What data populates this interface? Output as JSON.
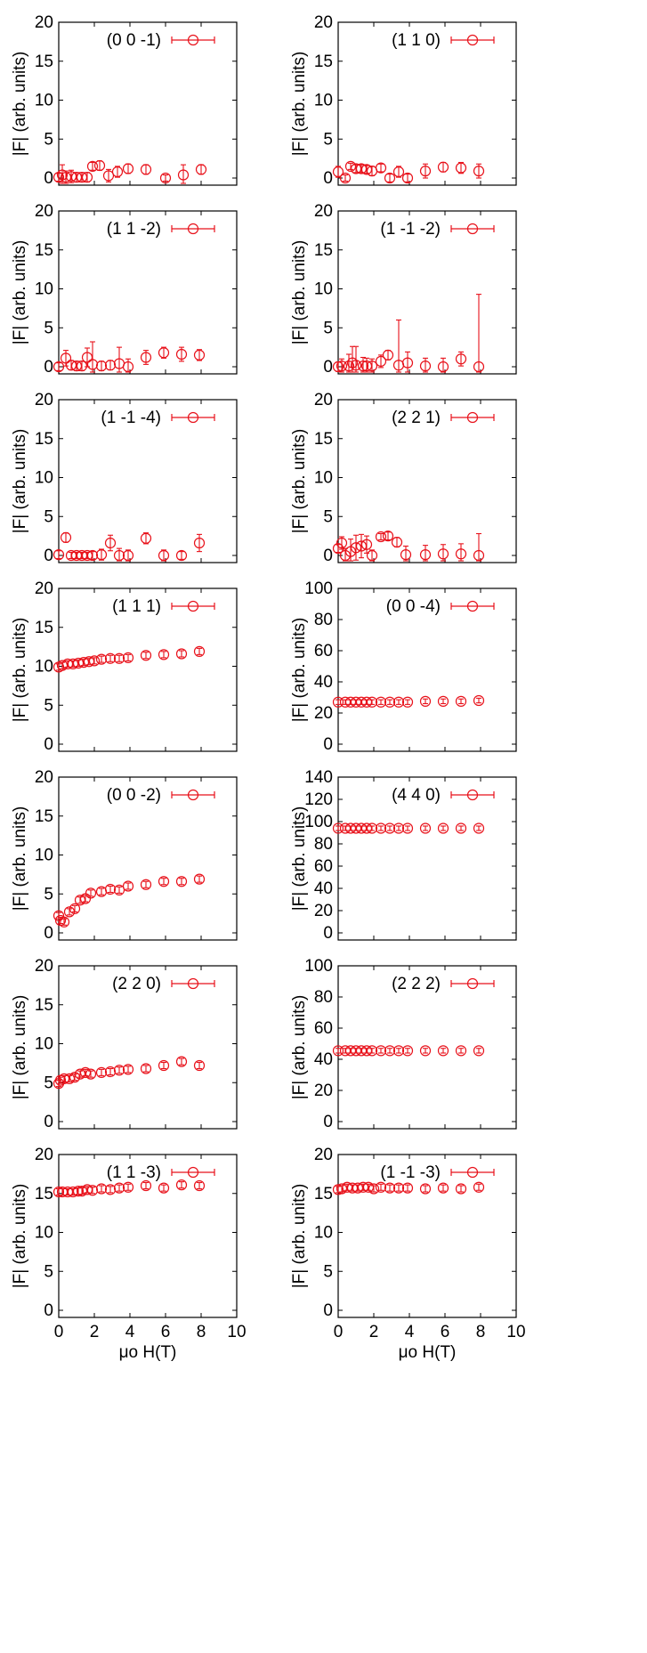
{
  "figure": {
    "xlabel": "μo H(T)",
    "ylabel": "|F| (arb. units)",
    "x_ticks": [
      0,
      2,
      4,
      6,
      8,
      10
    ],
    "series_color": "#e8111a",
    "axis_color": "#000000"
  },
  "chart_data": [
    {
      "type": "scatter",
      "title": "(0 0 -1)",
      "legend": "(0 0 -1)",
      "legend_loc": "top-right",
      "xlim": [
        0,
        10
      ],
      "ylim": [
        0,
        20
      ],
      "yticks": [
        0,
        5,
        10,
        15,
        20
      ],
      "ylabel": "|F| (arb. units)",
      "x": [
        0,
        0.2,
        0.4,
        0.7,
        1.0,
        1.3,
        1.6,
        1.9,
        2.3,
        2.8,
        3.3,
        3.9,
        4.9,
        6.0,
        7.0,
        8.0
      ],
      "y": [
        0.1,
        0.4,
        0.1,
        0.2,
        0.1,
        0.1,
        0.1,
        1.5,
        1.6,
        0.3,
        0.8,
        1.2,
        1.1,
        0.0,
        0.4,
        1.1
      ],
      "err": [
        0.5,
        1.3,
        0.8,
        0.8,
        0.6,
        0.6,
        0.6,
        0.5,
        0.6,
        0.8,
        0.7,
        0.6,
        0.6,
        0.4,
        1.3,
        0.6
      ]
    },
    {
      "type": "scatter",
      "title": "(1 1 0)",
      "legend": "(1 1 0)",
      "legend_loc": "top-right",
      "xlim": [
        0,
        10
      ],
      "ylim": [
        0,
        20
      ],
      "yticks": [
        0,
        5,
        10,
        15,
        20
      ],
      "ylabel": "|F| (arb. units)",
      "x": [
        0,
        0.4,
        0.7,
        1.0,
        1.3,
        1.6,
        1.9,
        2.4,
        2.9,
        3.4,
        3.9,
        4.9,
        5.9,
        6.9,
        7.9
      ],
      "y": [
        0.8,
        0.0,
        1.5,
        1.2,
        1.2,
        1.1,
        0.9,
        1.3,
        0.0,
        0.8,
        0.0,
        0.9,
        1.4,
        1.3,
        0.9
      ],
      "err": [
        0.7,
        0.4,
        0.4,
        0.5,
        0.5,
        0.5,
        0.6,
        0.5,
        0.5,
        0.7,
        0.5,
        0.9,
        0.6,
        0.7,
        0.9
      ]
    },
    {
      "type": "scatter",
      "title": "(1 1 -2)",
      "legend": "(1 1 -2)",
      "legend_loc": "top-right",
      "xlim": [
        0,
        10
      ],
      "ylim": [
        0,
        20
      ],
      "yticks": [
        0,
        5,
        10,
        15,
        20
      ],
      "ylabel": "|F| (arb. units)",
      "x": [
        0,
        0.4,
        0.7,
        1.0,
        1.3,
        1.6,
        1.9,
        2.4,
        2.9,
        3.4,
        3.9,
        4.9,
        5.9,
        6.9,
        7.9
      ],
      "y": [
        0.0,
        1.1,
        0.2,
        0.1,
        0.1,
        1.2,
        0.3,
        0.1,
        0.2,
        0.4,
        0.0,
        1.2,
        1.8,
        1.6,
        1.5
      ],
      "err": [
        0.5,
        1.0,
        0.6,
        0.6,
        0.6,
        1.2,
        2.9,
        0.6,
        0.6,
        2.1,
        1.0,
        0.9,
        0.7,
        0.9,
        0.7
      ]
    },
    {
      "type": "scatter",
      "title": "(1 -1 -2)",
      "legend": "(1 -1 -2)",
      "legend_loc": "top-right",
      "xlim": [
        0,
        10
      ],
      "ylim": [
        0,
        20
      ],
      "yticks": [
        0,
        5,
        10,
        15,
        20
      ],
      "ylabel": "|F| (arb. units)",
      "x": [
        0,
        0.2,
        0.6,
        0.8,
        1.0,
        1.4,
        1.6,
        1.9,
        2.4,
        2.8,
        3.4,
        3.9,
        4.9,
        5.9,
        6.9,
        7.9
      ],
      "y": [
        0.0,
        0.1,
        0.1,
        0.5,
        0.2,
        0.1,
        0.1,
        0.1,
        0.7,
        1.5,
        0.2,
        0.5,
        0.1,
        0.0,
        1.0,
        0.0
      ],
      "err": [
        0.6,
        0.9,
        1.5,
        2.1,
        2.4,
        1.1,
        1.0,
        0.9,
        0.8,
        0.6,
        5.8,
        1.4,
        1.0,
        1.1,
        0.9,
        9.3
      ]
    },
    {
      "type": "scatter",
      "title": "(1 -1 -4)",
      "legend": "(1 -1 -4)",
      "legend_loc": "top-right",
      "xlim": [
        0,
        10
      ],
      "ylim": [
        0,
        20
      ],
      "yticks": [
        0,
        5,
        10,
        15,
        20
      ],
      "ylabel": "|F| (arb. units)",
      "x": [
        0,
        0.4,
        0.7,
        1.0,
        1.3,
        1.6,
        1.9,
        2.4,
        2.9,
        3.4,
        3.9,
        4.9,
        5.9,
        6.9,
        7.9
      ],
      "y": [
        0.1,
        2.3,
        0.0,
        0.0,
        0.0,
        0.0,
        0.0,
        0.1,
        1.6,
        0.0,
        0.0,
        2.2,
        0.0,
        0.0,
        1.6
      ],
      "err": [
        0.5,
        0.6,
        0.4,
        0.4,
        0.4,
        0.4,
        0.5,
        0.7,
        1.0,
        0.9,
        0.7,
        0.7,
        0.7,
        0.5,
        1.1
      ]
    },
    {
      "type": "scatter",
      "title": "(2 2 1)",
      "legend": "(2 2 1)",
      "legend_loc": "top-right",
      "xlim": [
        0,
        10
      ],
      "ylim": [
        0,
        20
      ],
      "yticks": [
        0,
        5,
        10,
        15,
        20
      ],
      "ylabel": "|F| (arb. units)",
      "x": [
        0,
        0.2,
        0.4,
        0.7,
        1.0,
        1.3,
        1.6,
        1.9,
        2.4,
        2.8,
        3.3,
        3.8,
        4.9,
        5.9,
        6.9,
        7.9
      ],
      "y": [
        0.9,
        1.6,
        0.0,
        0.5,
        1.0,
        1.2,
        1.4,
        0.0,
        2.4,
        2.5,
        1.7,
        0.1,
        0.1,
        0.2,
        0.2,
        0.0
      ],
      "err": [
        0.5,
        0.8,
        0.9,
        1.6,
        1.6,
        1.5,
        1.1,
        0.7,
        0.4,
        0.5,
        0.6,
        1.1,
        1.2,
        1.2,
        1.3,
        2.8
      ]
    },
    {
      "type": "scatter",
      "title": "(1 1 1)",
      "legend": "(1 1 1)",
      "legend_loc": "top-right",
      "xlim": [
        0,
        10
      ],
      "ylim": [
        0,
        20
      ],
      "yticks": [
        0,
        5,
        10,
        15,
        20
      ],
      "ylabel": "|F| (arb. units)",
      "x": [
        0,
        0.2,
        0.5,
        0.8,
        1.1,
        1.4,
        1.7,
        2.0,
        2.4,
        2.9,
        3.4,
        3.9,
        4.9,
        5.9,
        6.9,
        7.9
      ],
      "y": [
        9.9,
        10.1,
        10.3,
        10.3,
        10.4,
        10.5,
        10.6,
        10.7,
        10.9,
        11.0,
        11.0,
        11.1,
        11.4,
        11.5,
        11.6,
        11.9
      ],
      "err": [
        0.4,
        0.4,
        0.4,
        0.4,
        0.4,
        0.4,
        0.4,
        0.4,
        0.4,
        0.4,
        0.4,
        0.4,
        0.4,
        0.4,
        0.4,
        0.4
      ]
    },
    {
      "type": "scatter",
      "title": "(0 0 -4)",
      "legend": "(0 0 -4)",
      "legend_loc": "top-right",
      "xlim": [
        0,
        10
      ],
      "ylim": [
        0,
        100
      ],
      "yticks": [
        0,
        20,
        40,
        60,
        80,
        100
      ],
      "ylabel": "|F| (arb. units)",
      "x": [
        0,
        0.4,
        0.7,
        1.0,
        1.3,
        1.6,
        1.9,
        2.4,
        2.9,
        3.4,
        3.9,
        4.9,
        5.9,
        6.9,
        7.9
      ],
      "y": [
        27,
        27,
        27,
        27,
        27,
        27,
        27,
        27,
        27,
        27,
        27,
        27.5,
        27.5,
        27.5,
        28
      ],
      "err": [
        1.5,
        1.5,
        1.5,
        1.5,
        1.5,
        1.5,
        1.5,
        1.5,
        1.5,
        1.5,
        1.5,
        1.5,
        1.5,
        1.5,
        1.5
      ]
    },
    {
      "type": "scatter",
      "title": "(0 0 -2)",
      "legend": "(0 0 -2)",
      "legend_loc": "top-right",
      "xlim": [
        0,
        10
      ],
      "ylim": [
        0,
        20
      ],
      "yticks": [
        0,
        5,
        10,
        15,
        20
      ],
      "ylabel": "|F| (arb. units)",
      "x": [
        0,
        0.1,
        0.3,
        0.6,
        0.9,
        1.2,
        1.5,
        1.8,
        2.4,
        2.9,
        3.4,
        3.9,
        4.9,
        5.9,
        6.9,
        7.9
      ],
      "y": [
        2.2,
        1.6,
        1.4,
        2.7,
        3.1,
        4.2,
        4.4,
        5.1,
        5.3,
        5.6,
        5.5,
        6.0,
        6.2,
        6.6,
        6.6,
        6.9
      ],
      "err": [
        0.4,
        0.4,
        0.4,
        0.4,
        0.4,
        0.4,
        0.4,
        0.4,
        0.4,
        0.4,
        0.4,
        0.4,
        0.4,
        0.4,
        0.4,
        0.4
      ]
    },
    {
      "type": "scatter",
      "title": "(4 4 0)",
      "legend": "(4 4 0)",
      "legend_loc": "top-right",
      "xlim": [
        0,
        10
      ],
      "ylim": [
        0,
        140
      ],
      "yticks": [
        0,
        20,
        40,
        60,
        80,
        100,
        120,
        140
      ],
      "ylabel": "|F| (arb. units)",
      "x": [
        0,
        0.4,
        0.7,
        1.0,
        1.3,
        1.6,
        1.9,
        2.4,
        2.9,
        3.4,
        3.9,
        4.9,
        5.9,
        6.9,
        7.9
      ],
      "y": [
        94,
        94,
        94,
        94,
        94,
        94,
        94,
        94,
        94,
        94,
        94,
        94,
        94,
        94,
        94
      ],
      "err": [
        2,
        2,
        2,
        2,
        2,
        2,
        2,
        2,
        2,
        2,
        2,
        2,
        2,
        2,
        2
      ]
    },
    {
      "type": "scatter",
      "title": "(2 2 0)",
      "legend": "(2 2 0)",
      "legend_loc": "top-right",
      "xlim": [
        0,
        10
      ],
      "ylim": [
        0,
        20
      ],
      "yticks": [
        0,
        5,
        10,
        15,
        20
      ],
      "ylabel": "|F| (arb. units)",
      "x": [
        0,
        0.1,
        0.3,
        0.6,
        0.9,
        1.2,
        1.5,
        1.8,
        2.4,
        2.9,
        3.4,
        3.9,
        4.9,
        5.9,
        6.9,
        7.9
      ],
      "y": [
        4.9,
        5.3,
        5.5,
        5.5,
        5.7,
        6.1,
        6.3,
        6.1,
        6.3,
        6.4,
        6.6,
        6.7,
        6.8,
        7.2,
        7.7,
        7.2
      ],
      "err": [
        0.4,
        0.4,
        0.4,
        0.4,
        0.4,
        0.4,
        0.4,
        0.4,
        0.4,
        0.4,
        0.4,
        0.4,
        0.4,
        0.4,
        0.4,
        0.4
      ]
    },
    {
      "type": "scatter",
      "title": "(2 2 2)",
      "legend": "(2 2 2)",
      "legend_loc": "top-right",
      "xlim": [
        0,
        10
      ],
      "ylim": [
        0,
        100
      ],
      "yticks": [
        0,
        20,
        40,
        60,
        80,
        100
      ],
      "ylabel": "|F| (arb. units)",
      "x": [
        0,
        0.4,
        0.7,
        1.0,
        1.3,
        1.6,
        1.9,
        2.4,
        2.9,
        3.4,
        3.9,
        4.9,
        5.9,
        6.9,
        7.9
      ],
      "y": [
        45.5,
        45.5,
        45.5,
        45.5,
        45.5,
        45.5,
        45.5,
        45.5,
        45.5,
        45.5,
        45.5,
        45.5,
        45.5,
        45.5,
        45.5
      ],
      "err": [
        1.5,
        1.5,
        1.5,
        1.5,
        1.5,
        1.5,
        1.5,
        1.5,
        1.5,
        1.5,
        1.5,
        1.5,
        1.5,
        1.5,
        1.5
      ]
    },
    {
      "type": "scatter",
      "title": "(1 1 -3)",
      "legend": "(1 1 -3)",
      "legend_loc": "top-right",
      "xlim": [
        0,
        10
      ],
      "ylim": [
        0,
        20
      ],
      "yticks": [
        0,
        5,
        10,
        15,
        20
      ],
      "ylabel": "|F| (arb. units)",
      "x": [
        0,
        0.2,
        0.5,
        0.8,
        1.1,
        1.3,
        1.6,
        1.9,
        2.4,
        2.9,
        3.4,
        3.9,
        4.9,
        5.9,
        6.9,
        7.9
      ],
      "y": [
        15.2,
        15.2,
        15.2,
        15.2,
        15.3,
        15.3,
        15.5,
        15.4,
        15.6,
        15.5,
        15.7,
        15.8,
        16.0,
        15.7,
        16.1,
        16.0
      ],
      "err": [
        0.4,
        0.4,
        0.4,
        0.4,
        0.4,
        0.4,
        0.4,
        0.4,
        0.4,
        0.4,
        0.4,
        0.4,
        0.4,
        0.4,
        0.4,
        0.4
      ]
    },
    {
      "type": "scatter",
      "title": "(1 -1 -3)",
      "legend": "(1 -1 -3)",
      "legend_loc": "top-right",
      "xlim": [
        0,
        10
      ],
      "ylim": [
        0,
        20
      ],
      "yticks": [
        0,
        5,
        10,
        15,
        20
      ],
      "ylabel": "|F| (arb. units)",
      "x": [
        0,
        0.2,
        0.5,
        0.8,
        1.1,
        1.4,
        1.7,
        2.0,
        2.4,
        2.9,
        3.4,
        3.9,
        4.9,
        5.9,
        6.9,
        7.9
      ],
      "y": [
        15.5,
        15.6,
        15.8,
        15.7,
        15.7,
        15.8,
        15.8,
        15.6,
        15.8,
        15.7,
        15.7,
        15.7,
        15.6,
        15.7,
        15.6,
        15.8
      ],
      "err": [
        0.4,
        0.4,
        0.4,
        0.4,
        0.4,
        0.4,
        0.4,
        0.4,
        0.4,
        0.4,
        0.4,
        0.4,
        0.4,
        0.4,
        0.4,
        0.4
      ]
    }
  ]
}
